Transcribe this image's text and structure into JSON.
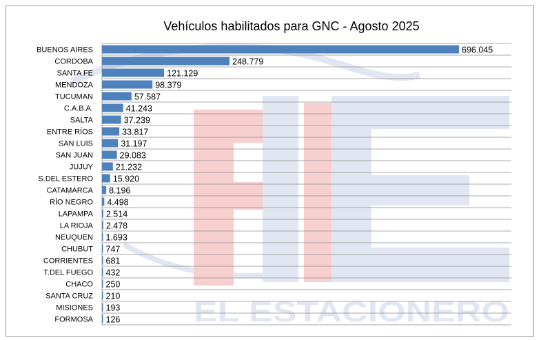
{
  "chart_data": {
    "type": "bar",
    "orientation": "horizontal",
    "title": "Vehículos habilitados para GNC - Agosto 2025",
    "xlabel": "",
    "ylabel": "",
    "grid": true,
    "xlim": [
      0,
      696045
    ],
    "bar_color": "#4f81bd",
    "categories": [
      "BUENOS AIRES",
      "CORDOBA",
      "SANTA FE",
      "MENDOZA",
      "TUCUMAN",
      "C.A.B.A.",
      "SALTA",
      "ENTRE RÍOS",
      "SAN LUIS",
      "SAN JUAN",
      "JUJUY",
      "S.DEL ESTERO",
      "CATAMARCA",
      "RÍO NEGRO",
      "LAPAMPA",
      "LA RIOJA",
      "NEUQUEN",
      "CHUBUT",
      "CORRIENTES",
      "T.DEL FUEGO",
      "CHACO",
      "SANTA CRUZ",
      "MISIONES",
      "FORMOSA"
    ],
    "values": [
      696045,
      248779,
      121129,
      98379,
      57587,
      41243,
      37239,
      33817,
      31197,
      29083,
      21232,
      15920,
      8196,
      4498,
      2514,
      2478,
      1693,
      747,
      681,
      432,
      250,
      210,
      193,
      126
    ],
    "value_labels": [
      "696.045",
      "248.779",
      "121.129",
      "98.379",
      "57.587",
      "41.243",
      "37.239",
      "33.817",
      "31.197",
      "29.083",
      "21.232",
      "15.920",
      "8.196",
      "4.498",
      "2.514",
      "2.478",
      "1.693",
      "747",
      "681",
      "432",
      "250",
      "210",
      "193",
      "126"
    ]
  },
  "watermark": {
    "text": "EL ESTACIONERO",
    "colors": {
      "red": "#f4a9a9",
      "blue": "#c9d4e8"
    }
  }
}
